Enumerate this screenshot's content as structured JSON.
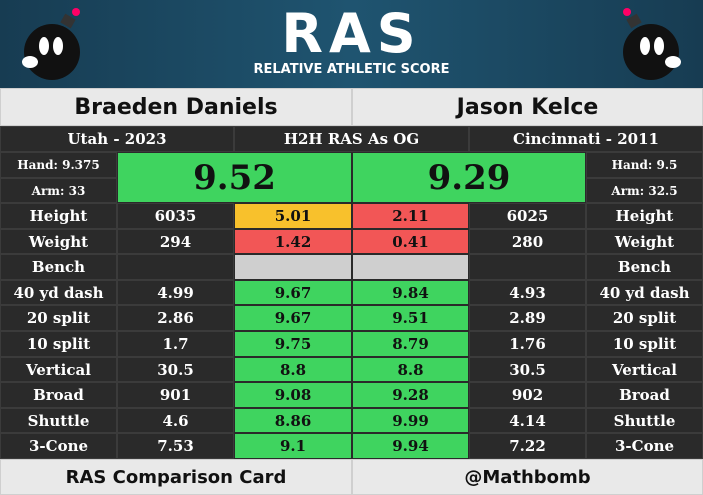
{
  "header": {
    "logo": "RAS",
    "subtitle": "RELATIVE ATHLETIC SCORE"
  },
  "players": [
    {
      "name": "Braeden Daniels",
      "school": "Utah - 2023",
      "hand": "Hand: 9.375",
      "arm": "Arm: 33",
      "ras": "9.52",
      "ras_color": "#3fd45f"
    },
    {
      "name": "Jason Kelce",
      "school": "Cincinnati - 2011",
      "hand": "Hand: 9.5",
      "arm": "Arm: 32.5",
      "ras": "9.29",
      "ras_color": "#3fd45f"
    }
  ],
  "center_label": "H2H RAS As OG",
  "table": {
    "rows": [
      {
        "label": "Height",
        "left": "6035",
        "left_score": "5.01",
        "left_color": "#f8c12c",
        "right_score": "2.11",
        "right_color": "#f25656",
        "right": "6025"
      },
      {
        "label": "Weight",
        "left": "294",
        "left_score": "1.42",
        "left_color": "#f25656",
        "right_score": "0.41",
        "right_color": "#f25656",
        "right": "280"
      },
      {
        "label": "Bench",
        "left": null,
        "left_score": null,
        "left_color": "#cfcfcf",
        "right_score": null,
        "right_color": "#cfcfcf",
        "right": null
      },
      {
        "label": "40 yd dash",
        "left": "4.99",
        "left_score": "9.67",
        "left_color": "#3fd45f",
        "right_score": "9.84",
        "right_color": "#3fd45f",
        "right": "4.93"
      },
      {
        "label": "20 split",
        "left": "2.86",
        "left_score": "9.67",
        "left_color": "#3fd45f",
        "right_score": "9.51",
        "right_color": "#3fd45f",
        "right": "2.89"
      },
      {
        "label": "10 split",
        "left": "1.7",
        "left_score": "9.75",
        "left_color": "#3fd45f",
        "right_score": "8.79",
        "right_color": "#3fd45f",
        "right": "1.76"
      },
      {
        "label": "Vertical",
        "left": "30.5",
        "left_score": "8.8",
        "left_color": "#3fd45f",
        "right_score": "8.8",
        "right_color": "#3fd45f",
        "right": "30.5"
      },
      {
        "label": "Broad",
        "left": "901",
        "left_score": "9.08",
        "left_color": "#3fd45f",
        "right_score": "9.28",
        "right_color": "#3fd45f",
        "right": "902"
      },
      {
        "label": "Shuttle",
        "left": "4.6",
        "left_score": "8.86",
        "left_color": "#3fd45f",
        "right_score": "9.99",
        "right_color": "#3fd45f",
        "right": "4.14"
      },
      {
        "label": "3-Cone",
        "left": "7.53",
        "left_score": "9.1",
        "left_color": "#3fd45f",
        "right_score": "9.94",
        "right_color": "#3fd45f",
        "right": "7.22"
      }
    ]
  },
  "footer": {
    "left": "RAS Comparison Card",
    "right": "@Mathbomb"
  }
}
